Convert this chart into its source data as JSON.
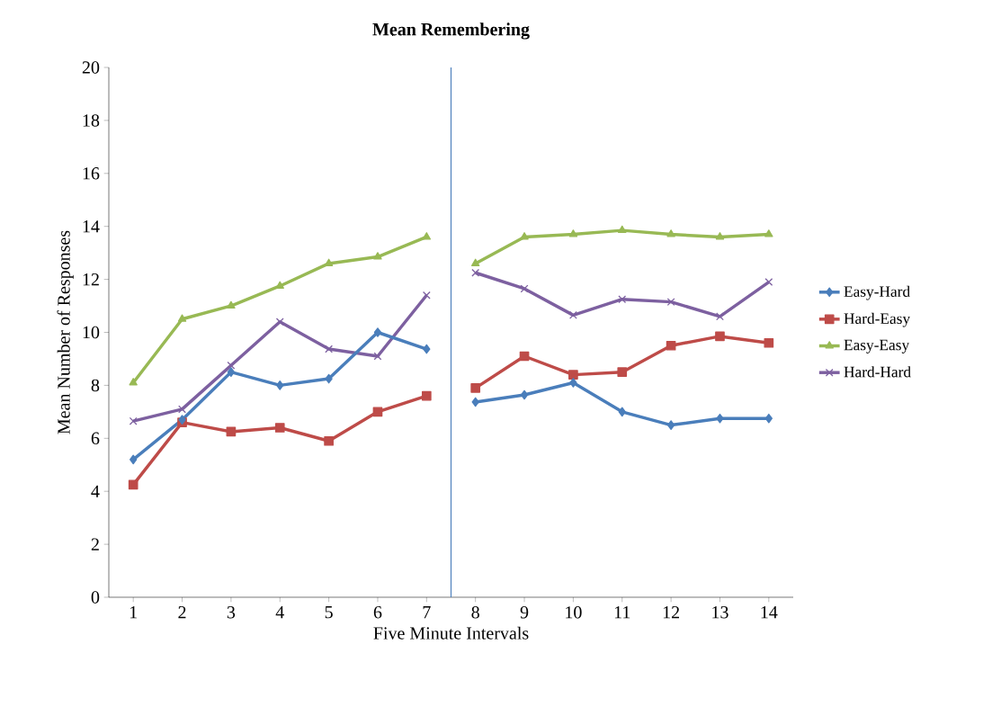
{
  "chart_data": {
    "type": "line",
    "title": "Mean Remembering",
    "xlabel": "Five Minute Intervals",
    "ylabel": "Mean Number of Responses",
    "x": [
      1,
      2,
      3,
      4,
      5,
      6,
      7,
      7.5,
      8,
      9,
      10,
      11,
      12,
      13,
      14
    ],
    "xlim": [
      0.5,
      14.5
    ],
    "xticks": [
      1,
      2,
      3,
      4,
      5,
      6,
      7,
      8,
      9,
      10,
      11,
      12,
      13,
      14
    ],
    "ylim": [
      0,
      20
    ],
    "yticks": [
      0,
      2,
      4,
      6,
      8,
      10,
      12,
      14,
      16,
      18,
      20
    ],
    "grid": false,
    "legend": "right",
    "ref_lines": [
      {
        "axis": "x",
        "value": 7.5,
        "color": "#4f81bd"
      }
    ],
    "series": [
      {
        "name": "Easy-Hard",
        "color": "#4a7ebb",
        "marker": "diamond",
        "values": [
          5.2,
          6.7,
          8.5,
          8.0,
          8.25,
          10.0,
          9.37,
          null,
          7.37,
          7.64,
          8.1,
          7.0,
          6.5,
          6.75,
          6.75
        ]
      },
      {
        "name": "Hard-Easy",
        "color": "#be4b48",
        "marker": "square",
        "values": [
          4.25,
          6.6,
          6.25,
          6.4,
          5.9,
          7.0,
          7.6,
          null,
          7.9,
          9.1,
          8.4,
          8.5,
          9.5,
          9.85,
          9.6
        ]
      },
      {
        "name": "Easy-Easy",
        "color": "#98b954",
        "marker": "triangle",
        "values": [
          8.1,
          10.5,
          11.0,
          11.75,
          12.6,
          12.85,
          13.6,
          null,
          12.6,
          13.6,
          13.7,
          13.85,
          13.7,
          13.6,
          13.7
        ]
      },
      {
        "name": "Hard-Hard",
        "color": "#7d60a0",
        "marker": "cross",
        "values": [
          6.65,
          7.1,
          8.75,
          10.4,
          9.37,
          9.1,
          11.4,
          null,
          12.25,
          11.65,
          10.65,
          11.25,
          11.15,
          10.6,
          11.9
        ]
      }
    ]
  }
}
